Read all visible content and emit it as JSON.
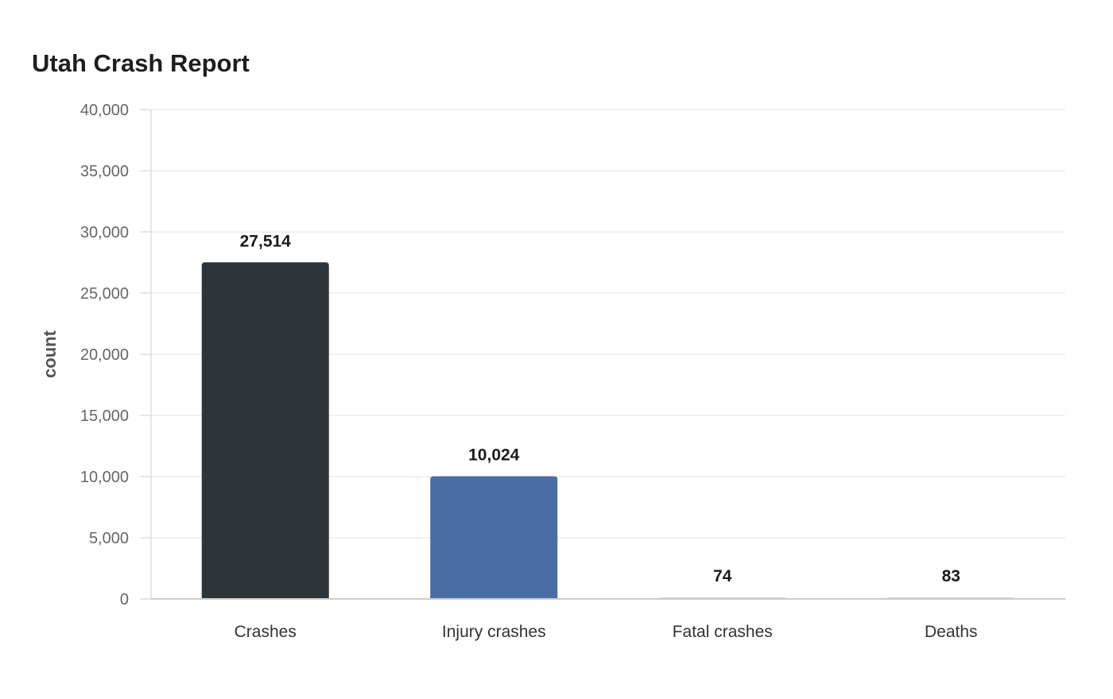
{
  "chart_data": {
    "type": "bar",
    "title": "Utah Crash Report",
    "xlabel": "",
    "ylabel": "count",
    "ylim": [
      0,
      40000
    ],
    "yticks": [
      0,
      5000,
      10000,
      15000,
      20000,
      25000,
      30000,
      35000,
      40000
    ],
    "ytick_labels": [
      "0",
      "5,000",
      "10,000",
      "15,000",
      "20,000",
      "25,000",
      "30,000",
      "35,000",
      "40,000"
    ],
    "categories": [
      "Crashes",
      "Injury crashes",
      "Fatal crashes",
      "Deaths"
    ],
    "values": [
      27514,
      10024,
      74,
      83
    ],
    "value_labels": [
      "27,514",
      "10,024",
      "74",
      "83"
    ],
    "colors": [
      "#2e3538",
      "#4a6da3",
      "#d8d8d8",
      "#d8d8d8"
    ],
    "grid": true,
    "legend": "none"
  }
}
